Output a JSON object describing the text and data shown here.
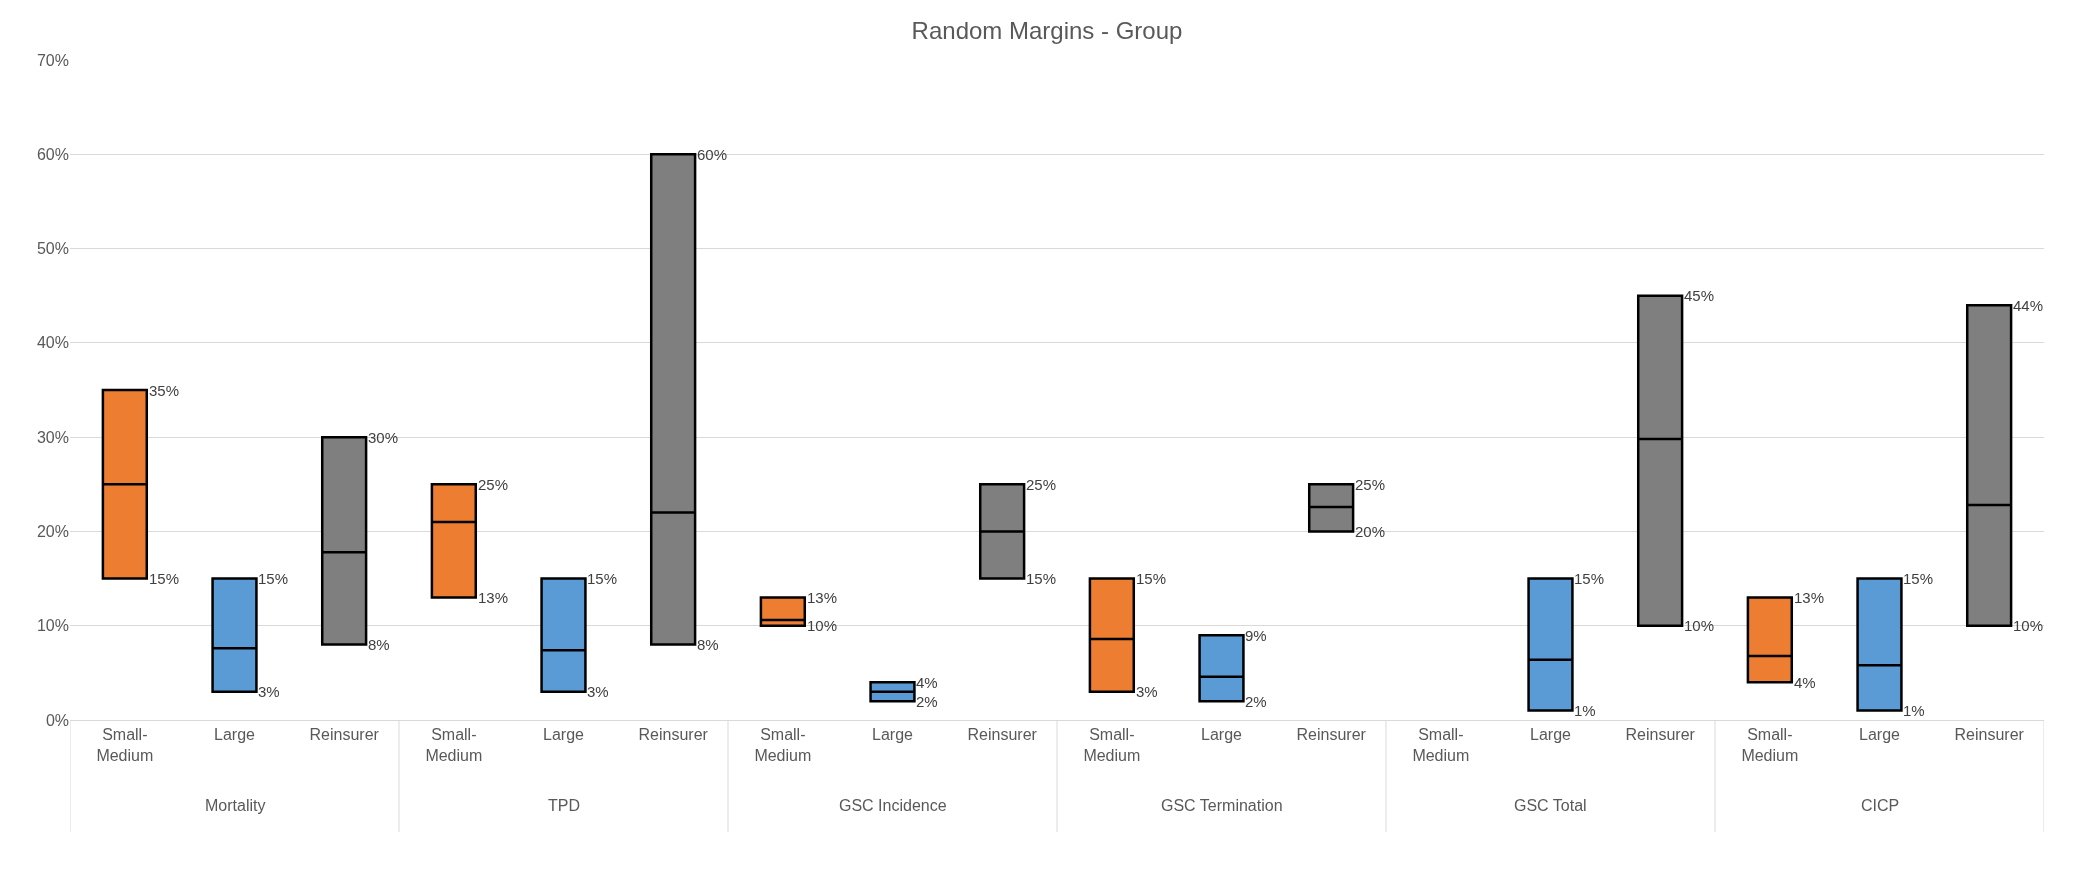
{
  "chart_data": {
    "type": "box",
    "title": "Random Margins - Group",
    "categories": [
      "Small-Medium",
      "Large",
      "Reinsurer",
      "Small-Medium",
      "Large",
      "Reinsurer",
      "Small-Medium",
      "Large",
      "Reinsurer",
      "Small-Medium",
      "Large",
      "Reinsurer",
      "Small-Medium",
      "Large",
      "Reinsurer",
      "Small-Medium",
      "Large",
      "Reinsurer"
    ],
    "boxes": [
      {
        "low": 15,
        "q1": 15,
        "median": 25,
        "q3": 35,
        "high": 35
      },
      {
        "low": 3,
        "q1": 3,
        "median": 7.6,
        "q3": 15,
        "high": 15
      },
      {
        "low": 8,
        "q1": 8,
        "median": 17.8,
        "q3": 30,
        "high": 30
      },
      {
        "low": 13,
        "q1": 13,
        "median": 21,
        "q3": 25,
        "high": 25
      },
      {
        "low": 3,
        "q1": 3,
        "median": 7.4,
        "q3": 15,
        "high": 15
      },
      {
        "low": 8,
        "q1": 8,
        "median": 22,
        "q3": 60,
        "high": 60
      },
      {
        "low": 10,
        "q1": 10,
        "median": 10.6,
        "q3": 13,
        "high": 13
      },
      {
        "low": 2,
        "q1": 2,
        "median": 3,
        "q3": 4,
        "high": 4
      },
      {
        "low": 15,
        "q1": 15,
        "median": 20,
        "q3": 25,
        "high": 25
      },
      {
        "low": 3,
        "q1": 3,
        "median": 8.6,
        "q3": 15,
        "high": 15
      },
      {
        "low": 2,
        "q1": 2,
        "median": 4.6,
        "q3": 9,
        "high": 9
      },
      {
        "low": 20,
        "q1": 20,
        "median": 22.6,
        "q3": 25,
        "high": 25
      },
      null,
      {
        "low": 1,
        "q1": 1,
        "median": 6.4,
        "q3": 15,
        "high": 15
      },
      {
        "low": 10,
        "q1": 10,
        "median": 29.8,
        "q3": 45,
        "high": 45
      },
      {
        "low": 4,
        "q1": 4,
        "median": 6.8,
        "q3": 13,
        "high": 13
      },
      {
        "low": 1,
        "q1": 1,
        "median": 5.8,
        "q3": 15,
        "high": 15
      },
      {
        "low": 10,
        "q1": 10,
        "median": 22.8,
        "q3": 44,
        "high": 44
      }
    ],
    "colors": [
      "#ed7d31",
      "#5b9bd5",
      "#7f7f7f",
      "#ed7d31",
      "#5b9bd5",
      "#7f7f7f",
      "#ed7d31",
      "#5b9bd5",
      "#7f7f7f",
      "#ed7d31",
      "#5b9bd5",
      "#7f7f7f",
      "#ed7d31",
      "#5b9bd5",
      "#7f7f7f",
      "#ed7d31",
      "#5b9bd5",
      "#7f7f7f"
    ],
    "annotations": [
      "Mortality",
      "TPD",
      "GSC Incidence",
      "GSC Termination",
      "GSC Total",
      "CICP"
    ],
    "ylim": [
      0,
      70
    ],
    "yticks": [
      {
        "value": 0,
        "label": "0%"
      },
      {
        "value": 10,
        "label": "10%"
      },
      {
        "value": 20,
        "label": "20%"
      },
      {
        "value": 30,
        "label": "30%"
      },
      {
        "value": 40,
        "label": "40%"
      },
      {
        "value": 50,
        "label": "50%"
      },
      {
        "value": 60,
        "label": "60%"
      },
      {
        "value": 70,
        "label": "70%"
      }
    ],
    "value_labels": [
      [
        "35%",
        "15%"
      ],
      [
        "15%",
        "3%"
      ],
      [
        "30%",
        "8%"
      ],
      [
        "25%",
        "13%"
      ],
      [
        "15%",
        "3%"
      ],
      [
        "60%",
        "8%"
      ],
      [
        "13%",
        "10%"
      ],
      [
        "4%",
        "2%"
      ],
      [
        "25%",
        "15%"
      ],
      [
        "15%",
        "3%"
      ],
      [
        "9%",
        "2%"
      ],
      [
        "25%",
        "20%"
      ],
      null,
      [
        "15%",
        "1%"
      ],
      [
        "45%",
        "10%"
      ],
      [
        "13%",
        "4%"
      ],
      [
        "15%",
        "1%"
      ],
      [
        "44%",
        "10%"
      ]
    ],
    "grid": "y"
  }
}
